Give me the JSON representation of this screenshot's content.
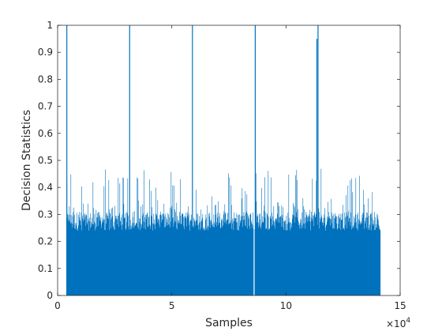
{
  "chart_data": {
    "type": "bar",
    "title": "",
    "xlabel": "Samples",
    "ylabel": "Decision Statistics",
    "x_multiplier_label": "×10",
    "x_multiplier_exponent": "4",
    "xlim": [
      0,
      15
    ],
    "ylim": [
      0,
      1
    ],
    "xticks": [
      "0",
      "5",
      "10",
      "15"
    ],
    "yticks": [
      "0",
      "0.1",
      "0.2",
      "0.3",
      "0.4",
      "0.5",
      "0.6",
      "0.7",
      "0.8",
      "0.9",
      "1"
    ],
    "grid": false,
    "bar_color": "#0072BD",
    "data_range_x": [
      0.4,
      14.1
    ],
    "noise_range_y": [
      0.2,
      0.47
    ],
    "peaks": [
      {
        "x": 0.4,
        "y": 1.0
      },
      {
        "x": 3.15,
        "y": 1.0
      },
      {
        "x": 5.9,
        "y": 1.0
      },
      {
        "x": 8.65,
        "y": 1.0
      },
      {
        "x": 11.4,
        "y": 1.0
      },
      {
        "x": 11.35,
        "y": 0.95
      }
    ],
    "dips": [
      {
        "x": 8.6,
        "y": 0.0
      }
    ]
  }
}
